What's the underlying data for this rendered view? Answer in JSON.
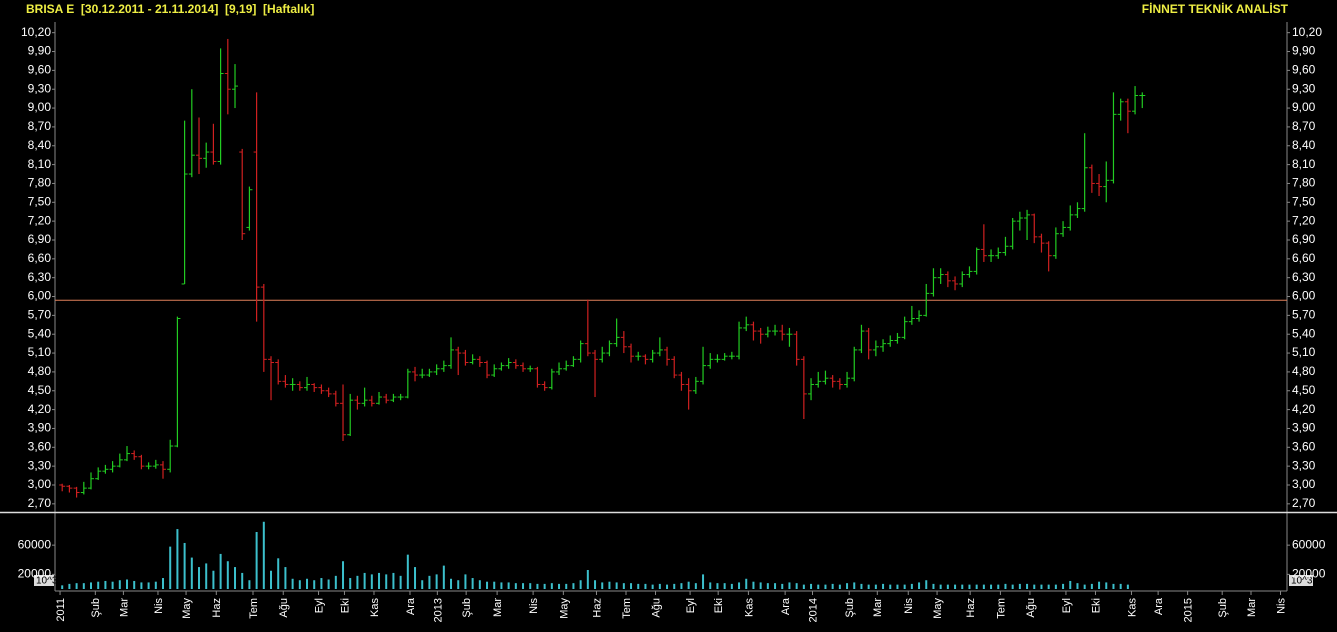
{
  "header": {
    "title": "BRISA E  [30.12.2011 - 21.11.2014]  [9,19]  [Haftalık]",
    "brand": "FİNNET TEKNİK ANALİST"
  },
  "chart_data": [
    {
      "type": "ohlc",
      "up_color": "#22cc22",
      "down_color": "#d02020",
      "xlim": [
        -1,
        170.1
      ],
      "ylim": [
        2.57,
        10.37
      ],
      "reference_line": {
        "value": 5.94,
        "color": "#e0805a"
      },
      "yticks": [
        {
          "value": 2.7,
          "label": "2,70"
        },
        {
          "value": 3.0,
          "label": "3,00"
        },
        {
          "value": 3.3,
          "label": "3,30"
        },
        {
          "value": 3.6,
          "label": "3,60"
        },
        {
          "value": 3.9,
          "label": "3,90"
        },
        {
          "value": 4.2,
          "label": "4,20"
        },
        {
          "value": 4.5,
          "label": "4,50"
        },
        {
          "value": 4.8,
          "label": "4,80"
        },
        {
          "value": 5.1,
          "label": "5,10"
        },
        {
          "value": 5.4,
          "label": "5,40"
        },
        {
          "value": 5.7,
          "label": "5,70"
        },
        {
          "value": 6.0,
          "label": "6,00"
        },
        {
          "value": 6.3,
          "label": "6,30"
        },
        {
          "value": 6.6,
          "label": "6,60"
        },
        {
          "value": 6.9,
          "label": "6,90"
        },
        {
          "value": 7.2,
          "label": "7,20"
        },
        {
          "value": 7.5,
          "label": "7,50"
        },
        {
          "value": 7.8,
          "label": "7,80"
        },
        {
          "value": 8.1,
          "label": "8,10"
        },
        {
          "value": 8.4,
          "label": "8,40"
        },
        {
          "value": 8.7,
          "label": "8,70"
        },
        {
          "value": 9.0,
          "label": "9,00"
        },
        {
          "value": 9.3,
          "label": "9,30"
        },
        {
          "value": 9.6,
          "label": "9,60"
        },
        {
          "value": 9.9,
          "label": "9,90"
        },
        {
          "value": 10.2,
          "label": "10,20"
        }
      ],
      "open": [
        3.0,
        2.98,
        2.95,
        2.88,
        2.95,
        3.1,
        3.22,
        3.25,
        3.3,
        3.4,
        3.5,
        3.45,
        3.3,
        3.3,
        3.32,
        3.25,
        3.62,
        6.2,
        7.95,
        8.25,
        8.2,
        8.3,
        8.15,
        9.55,
        9.3,
        8.3,
        7.1,
        8.3,
        6.15,
        5.0,
        4.95,
        4.65,
        4.6,
        4.6,
        4.55,
        4.6,
        4.55,
        4.5,
        4.45,
        4.3,
        3.8,
        4.35,
        4.3,
        4.35,
        4.3,
        4.4,
        4.35,
        4.4,
        4.4,
        4.8,
        4.75,
        4.75,
        4.8,
        4.85,
        4.9,
        5.15,
        5.1,
        4.95,
        5.0,
        4.95,
        4.75,
        4.85,
        4.9,
        4.95,
        4.9,
        4.85,
        4.85,
        4.6,
        4.55,
        4.8,
        4.85,
        4.9,
        5.0,
        5.25,
        5.1,
        5.0,
        5.1,
        5.25,
        5.35,
        5.2,
        5.05,
        5.05,
        5.0,
        5.1,
        5.15,
        5.0,
        4.75,
        4.6,
        4.5,
        4.65,
        4.9,
        5.0,
        5.0,
        5.05,
        5.05,
        5.5,
        5.55,
        5.45,
        5.4,
        5.45,
        5.45,
        5.4,
        5.4,
        5.0,
        4.45,
        4.6,
        4.65,
        4.7,
        4.65,
        4.6,
        4.7,
        5.15,
        5.45,
        5.15,
        5.2,
        5.25,
        5.3,
        5.35,
        5.6,
        5.65,
        5.7,
        6.05,
        6.3,
        6.35,
        6.25,
        6.2,
        6.35,
        6.4,
        6.75,
        6.65,
        6.65,
        6.7,
        6.8,
        7.2,
        7.25,
        7.3,
        6.95,
        6.85,
        6.65,
        7.0,
        7.1,
        7.3,
        7.4,
        8.05,
        7.8,
        7.75,
        7.85,
        8.9,
        9.1,
        8.95,
        9.2
      ],
      "high": [
        3.02,
        3.0,
        2.97,
        3.05,
        3.2,
        3.28,
        3.32,
        3.38,
        3.5,
        3.62,
        3.55,
        3.48,
        3.36,
        3.4,
        3.38,
        3.72,
        5.68,
        8.8,
        9.3,
        8.85,
        8.45,
        8.75,
        9.95,
        10.1,
        9.7,
        8.35,
        7.75,
        9.25,
        6.2,
        5.05,
        5.0,
        4.75,
        4.7,
        4.65,
        4.72,
        4.62,
        4.6,
        4.55,
        4.5,
        4.6,
        4.45,
        4.42,
        4.55,
        4.42,
        4.48,
        4.45,
        4.45,
        4.45,
        4.85,
        4.88,
        4.85,
        4.85,
        4.92,
        4.98,
        5.35,
        5.2,
        5.15,
        5.08,
        5.05,
        4.98,
        4.92,
        4.95,
        5.02,
        5.0,
        4.95,
        4.9,
        4.88,
        4.65,
        4.85,
        4.95,
        4.98,
        5.05,
        5.3,
        5.95,
        5.15,
        5.2,
        5.3,
        5.65,
        5.45,
        5.25,
        5.12,
        5.08,
        5.15,
        5.35,
        5.2,
        5.05,
        4.8,
        4.7,
        4.72,
        5.2,
        5.1,
        5.08,
        5.1,
        5.12,
        5.6,
        5.68,
        5.6,
        5.5,
        5.52,
        5.55,
        5.55,
        5.5,
        5.45,
        5.05,
        4.7,
        4.8,
        4.82,
        4.75,
        4.7,
        4.8,
        5.2,
        5.55,
        5.5,
        5.3,
        5.32,
        5.38,
        5.42,
        5.68,
        5.85,
        5.78,
        6.2,
        6.45,
        6.45,
        6.4,
        6.32,
        6.4,
        6.48,
        6.78,
        7.15,
        6.75,
        6.78,
        6.95,
        7.25,
        7.35,
        7.38,
        7.32,
        7.0,
        6.88,
        7.1,
        7.2,
        7.45,
        7.5,
        8.6,
        8.1,
        7.95,
        8.15,
        9.25,
        9.15,
        9.15,
        9.35,
        9.25
      ],
      "low": [
        2.9,
        2.88,
        2.8,
        2.85,
        2.93,
        3.08,
        3.18,
        3.2,
        3.28,
        3.38,
        3.4,
        3.25,
        3.25,
        3.26,
        3.1,
        3.2,
        3.6,
        6.2,
        7.9,
        7.95,
        8.05,
        8.1,
        8.1,
        8.9,
        9.0,
        6.9,
        7.05,
        5.6,
        4.8,
        4.35,
        4.6,
        4.55,
        4.5,
        4.5,
        4.5,
        4.48,
        4.45,
        4.4,
        4.25,
        3.7,
        3.78,
        4.2,
        4.25,
        4.25,
        4.28,
        4.3,
        4.32,
        4.35,
        4.38,
        4.65,
        4.7,
        4.72,
        4.75,
        4.8,
        4.85,
        4.75,
        4.9,
        4.92,
        4.88,
        4.7,
        4.72,
        4.82,
        4.85,
        4.85,
        4.8,
        4.8,
        4.55,
        4.5,
        4.52,
        4.75,
        4.82,
        4.88,
        4.95,
        5.05,
        4.4,
        4.95,
        5.05,
        5.2,
        5.1,
        4.95,
        4.98,
        4.92,
        4.95,
        5.05,
        4.9,
        4.7,
        4.5,
        4.2,
        4.45,
        4.6,
        4.85,
        4.95,
        4.98,
        5.0,
        5.0,
        5.45,
        5.3,
        5.25,
        5.35,
        5.38,
        5.3,
        5.2,
        4.9,
        4.05,
        4.35,
        4.55,
        4.6,
        4.55,
        4.52,
        4.55,
        4.65,
        5.1,
        5.0,
        5.05,
        5.12,
        5.2,
        5.25,
        5.32,
        5.55,
        5.6,
        5.68,
        6.0,
        6.2,
        6.15,
        6.1,
        6.15,
        6.3,
        6.35,
        6.55,
        6.55,
        6.6,
        6.65,
        6.75,
        7.05,
        6.9,
        6.85,
        6.7,
        6.4,
        6.6,
        6.95,
        7.05,
        7.25,
        7.35,
        7.65,
        7.6,
        7.5,
        7.8,
        8.8,
        8.6,
        8.9,
        9.0
      ],
      "close": [
        2.98,
        2.95,
        2.88,
        2.95,
        3.1,
        3.22,
        3.25,
        3.3,
        3.4,
        3.5,
        3.45,
        3.3,
        3.3,
        3.32,
        3.25,
        3.62,
        5.65,
        7.95,
        8.25,
        8.2,
        8.3,
        8.15,
        9.55,
        9.3,
        9.35,
        7.0,
        7.7,
        6.15,
        5.0,
        4.95,
        4.65,
        4.6,
        4.6,
        4.55,
        4.6,
        4.55,
        4.5,
        4.45,
        4.3,
        3.8,
        4.35,
        4.3,
        4.35,
        4.3,
        4.4,
        4.35,
        4.4,
        4.4,
        4.8,
        4.75,
        4.75,
        4.8,
        4.85,
        4.9,
        5.15,
        5.1,
        4.95,
        5.0,
        4.95,
        4.75,
        4.85,
        4.9,
        4.95,
        4.9,
        4.85,
        4.85,
        4.6,
        4.55,
        4.8,
        4.85,
        4.9,
        5.0,
        5.25,
        5.1,
        5.0,
        5.1,
        5.25,
        5.35,
        5.2,
        5.05,
        5.05,
        5.0,
        5.1,
        5.15,
        5.0,
        4.75,
        4.6,
        4.5,
        4.65,
        4.9,
        5.0,
        5.0,
        5.05,
        5.05,
        5.5,
        5.55,
        5.45,
        5.4,
        5.45,
        5.45,
        5.4,
        5.4,
        5.0,
        4.45,
        4.6,
        4.65,
        4.7,
        4.65,
        4.6,
        4.7,
        5.15,
        5.45,
        5.15,
        5.2,
        5.25,
        5.3,
        5.35,
        5.6,
        5.65,
        5.7,
        6.05,
        6.3,
        6.35,
        6.25,
        6.2,
        6.35,
        6.4,
        6.75,
        6.65,
        6.65,
        6.7,
        6.8,
        7.2,
        7.25,
        7.3,
        6.95,
        6.85,
        6.65,
        7.0,
        7.1,
        7.3,
        7.4,
        8.05,
        7.8,
        7.75,
        7.85,
        8.9,
        9.1,
        8.95,
        9.2,
        9.2
      ]
    },
    {
      "type": "bar",
      "color": "#3cc0cc",
      "unit_label": "10^3",
      "xlim": [
        -1,
        170.1
      ],
      "ylim": [
        0,
        104000
      ],
      "yticks": [
        20000,
        60000
      ],
      "xticks": [
        {
          "value": -0.3,
          "label": "2011"
        },
        {
          "value": 4.6,
          "label": "Şub"
        },
        {
          "value": 8.5,
          "label": "Mar"
        },
        {
          "value": 13.3,
          "label": "Nis"
        },
        {
          "value": 17.2,
          "label": "May"
        },
        {
          "value": 21.4,
          "label": "Haz"
        },
        {
          "value": 26.5,
          "label": "Tem"
        },
        {
          "value": 30.7,
          "label": "Ağu"
        },
        {
          "value": 35.6,
          "label": "Eyl"
        },
        {
          "value": 39.2,
          "label": "Eki"
        },
        {
          "value": 43.3,
          "label": "Kas"
        },
        {
          "value": 48.3,
          "label": "Ara"
        },
        {
          "value": 52.1,
          "label": "2013"
        },
        {
          "value": 56.1,
          "label": "Şub"
        },
        {
          "value": 60.4,
          "label": "Mar"
        },
        {
          "value": 65.4,
          "label": "Nis"
        },
        {
          "value": 69.6,
          "label": "May"
        },
        {
          "value": 74.2,
          "label": "Haz"
        },
        {
          "value": 78.3,
          "label": "Tem"
        },
        {
          "value": 82.4,
          "label": "Ağu"
        },
        {
          "value": 87.2,
          "label": "Eyl"
        },
        {
          "value": 91.1,
          "label": "Eki"
        },
        {
          "value": 95.3,
          "label": "Kas"
        },
        {
          "value": 100.4,
          "label": "Ara"
        },
        {
          "value": 104.2,
          "label": "2014"
        },
        {
          "value": 109.3,
          "label": "Şub"
        },
        {
          "value": 113.2,
          "label": "Mar"
        },
        {
          "value": 117.5,
          "label": "Nis"
        },
        {
          "value": 121.5,
          "label": "May"
        },
        {
          "value": 126.1,
          "label": "Haz"
        },
        {
          "value": 130.3,
          "label": "Tem"
        },
        {
          "value": 134.4,
          "label": "Ağu"
        },
        {
          "value": 139.4,
          "label": "Eyl"
        },
        {
          "value": 143.5,
          "label": "Eki"
        },
        {
          "value": 148.5,
          "label": "Kas"
        },
        {
          "value": 152.2,
          "label": "Ara"
        },
        {
          "value": 156.3,
          "label": "2015"
        },
        {
          "value": 161.1,
          "label": "Şub"
        },
        {
          "value": 165.1,
          "label": "Mar"
        },
        {
          "value": 169.2,
          "label": "Nis"
        }
      ],
      "values": [
        5000,
        7000,
        8000,
        8000,
        9000,
        10000,
        11000,
        10000,
        12000,
        13000,
        11000,
        9000,
        9000,
        10000,
        15000,
        58000,
        82000,
        63000,
        43000,
        30000,
        35000,
        25000,
        48000,
        38000,
        30000,
        22000,
        12000,
        78000,
        92000,
        25000,
        42000,
        30000,
        14000,
        12000,
        14000,
        12000,
        15000,
        13000,
        18000,
        38000,
        15000,
        18000,
        22000,
        20000,
        22000,
        20000,
        22000,
        18000,
        47000,
        30000,
        12000,
        18000,
        20000,
        32000,
        14000,
        12000,
        20000,
        15000,
        12000,
        10000,
        10000,
        9000,
        9000,
        8000,
        8000,
        8000,
        7000,
        7000,
        8000,
        7000,
        7000,
        8000,
        12000,
        26000,
        12000,
        9000,
        10000,
        9000,
        8000,
        8000,
        7000,
        7000,
        6000,
        7000,
        6000,
        7000,
        8000,
        10000,
        8000,
        20000,
        9000,
        8000,
        8000,
        7000,
        9000,
        14000,
        10000,
        9000,
        8000,
        8000,
        7000,
        9000,
        8000,
        6000,
        7000,
        6000,
        6000,
        7000,
        6000,
        8000,
        9000,
        7000,
        6000,
        6000,
        7000,
        6000,
        6000,
        6000,
        7000,
        9000,
        12000,
        7000,
        6000,
        6000,
        6000,
        6000,
        6000,
        6000,
        6000,
        6000,
        6000,
        7000,
        6000,
        7000,
        7000,
        6000,
        6000,
        6000,
        6000,
        7000,
        11000,
        8000,
        6000,
        7000,
        10000,
        9000,
        7000,
        7000,
        6000
      ]
    }
  ]
}
